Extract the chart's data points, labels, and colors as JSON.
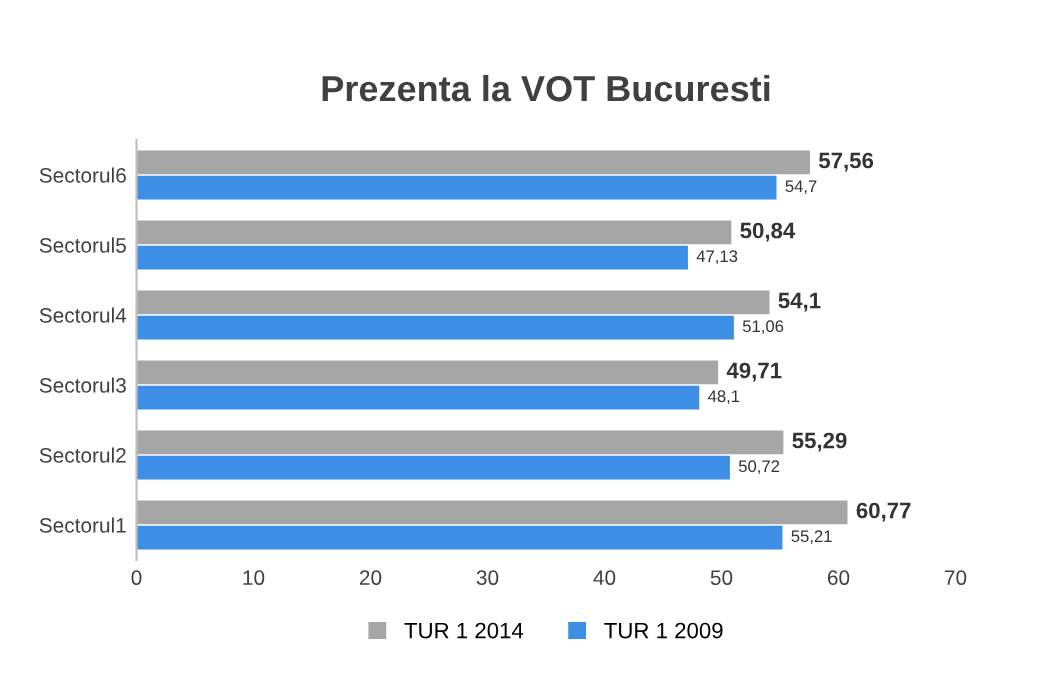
{
  "chart_data": {
    "type": "bar",
    "orientation": "horizontal",
    "title": "Prezenta la VOT Bucuresti",
    "categories": [
      "Sectorul6",
      "Sectorul5",
      "Sectorul4",
      "Sectorul3",
      "Sectorul2",
      "Sectorul1"
    ],
    "series": [
      {
        "name": "TUR 1 2014",
        "color": "#a6a6a6",
        "values": [
          57.56,
          50.84,
          54.1,
          49.71,
          55.29,
          60.77
        ],
        "value_labels": [
          "57,56",
          "50,84",
          "54,1",
          "49,71",
          "55,29",
          "60,77"
        ]
      },
      {
        "name": "TUR 1 2009",
        "color": "#3d8fe6",
        "values": [
          54.7,
          47.13,
          51.06,
          48.1,
          50.72,
          55.21
        ],
        "value_labels": [
          "54,7",
          "47,13",
          "51,06",
          "48,1",
          "50,72",
          "55,21"
        ]
      }
    ],
    "xlim": [
      0,
      70
    ],
    "xticks": [
      0,
      10,
      20,
      30,
      40,
      50,
      60,
      70
    ],
    "grid": false,
    "legend": "bottom"
  }
}
